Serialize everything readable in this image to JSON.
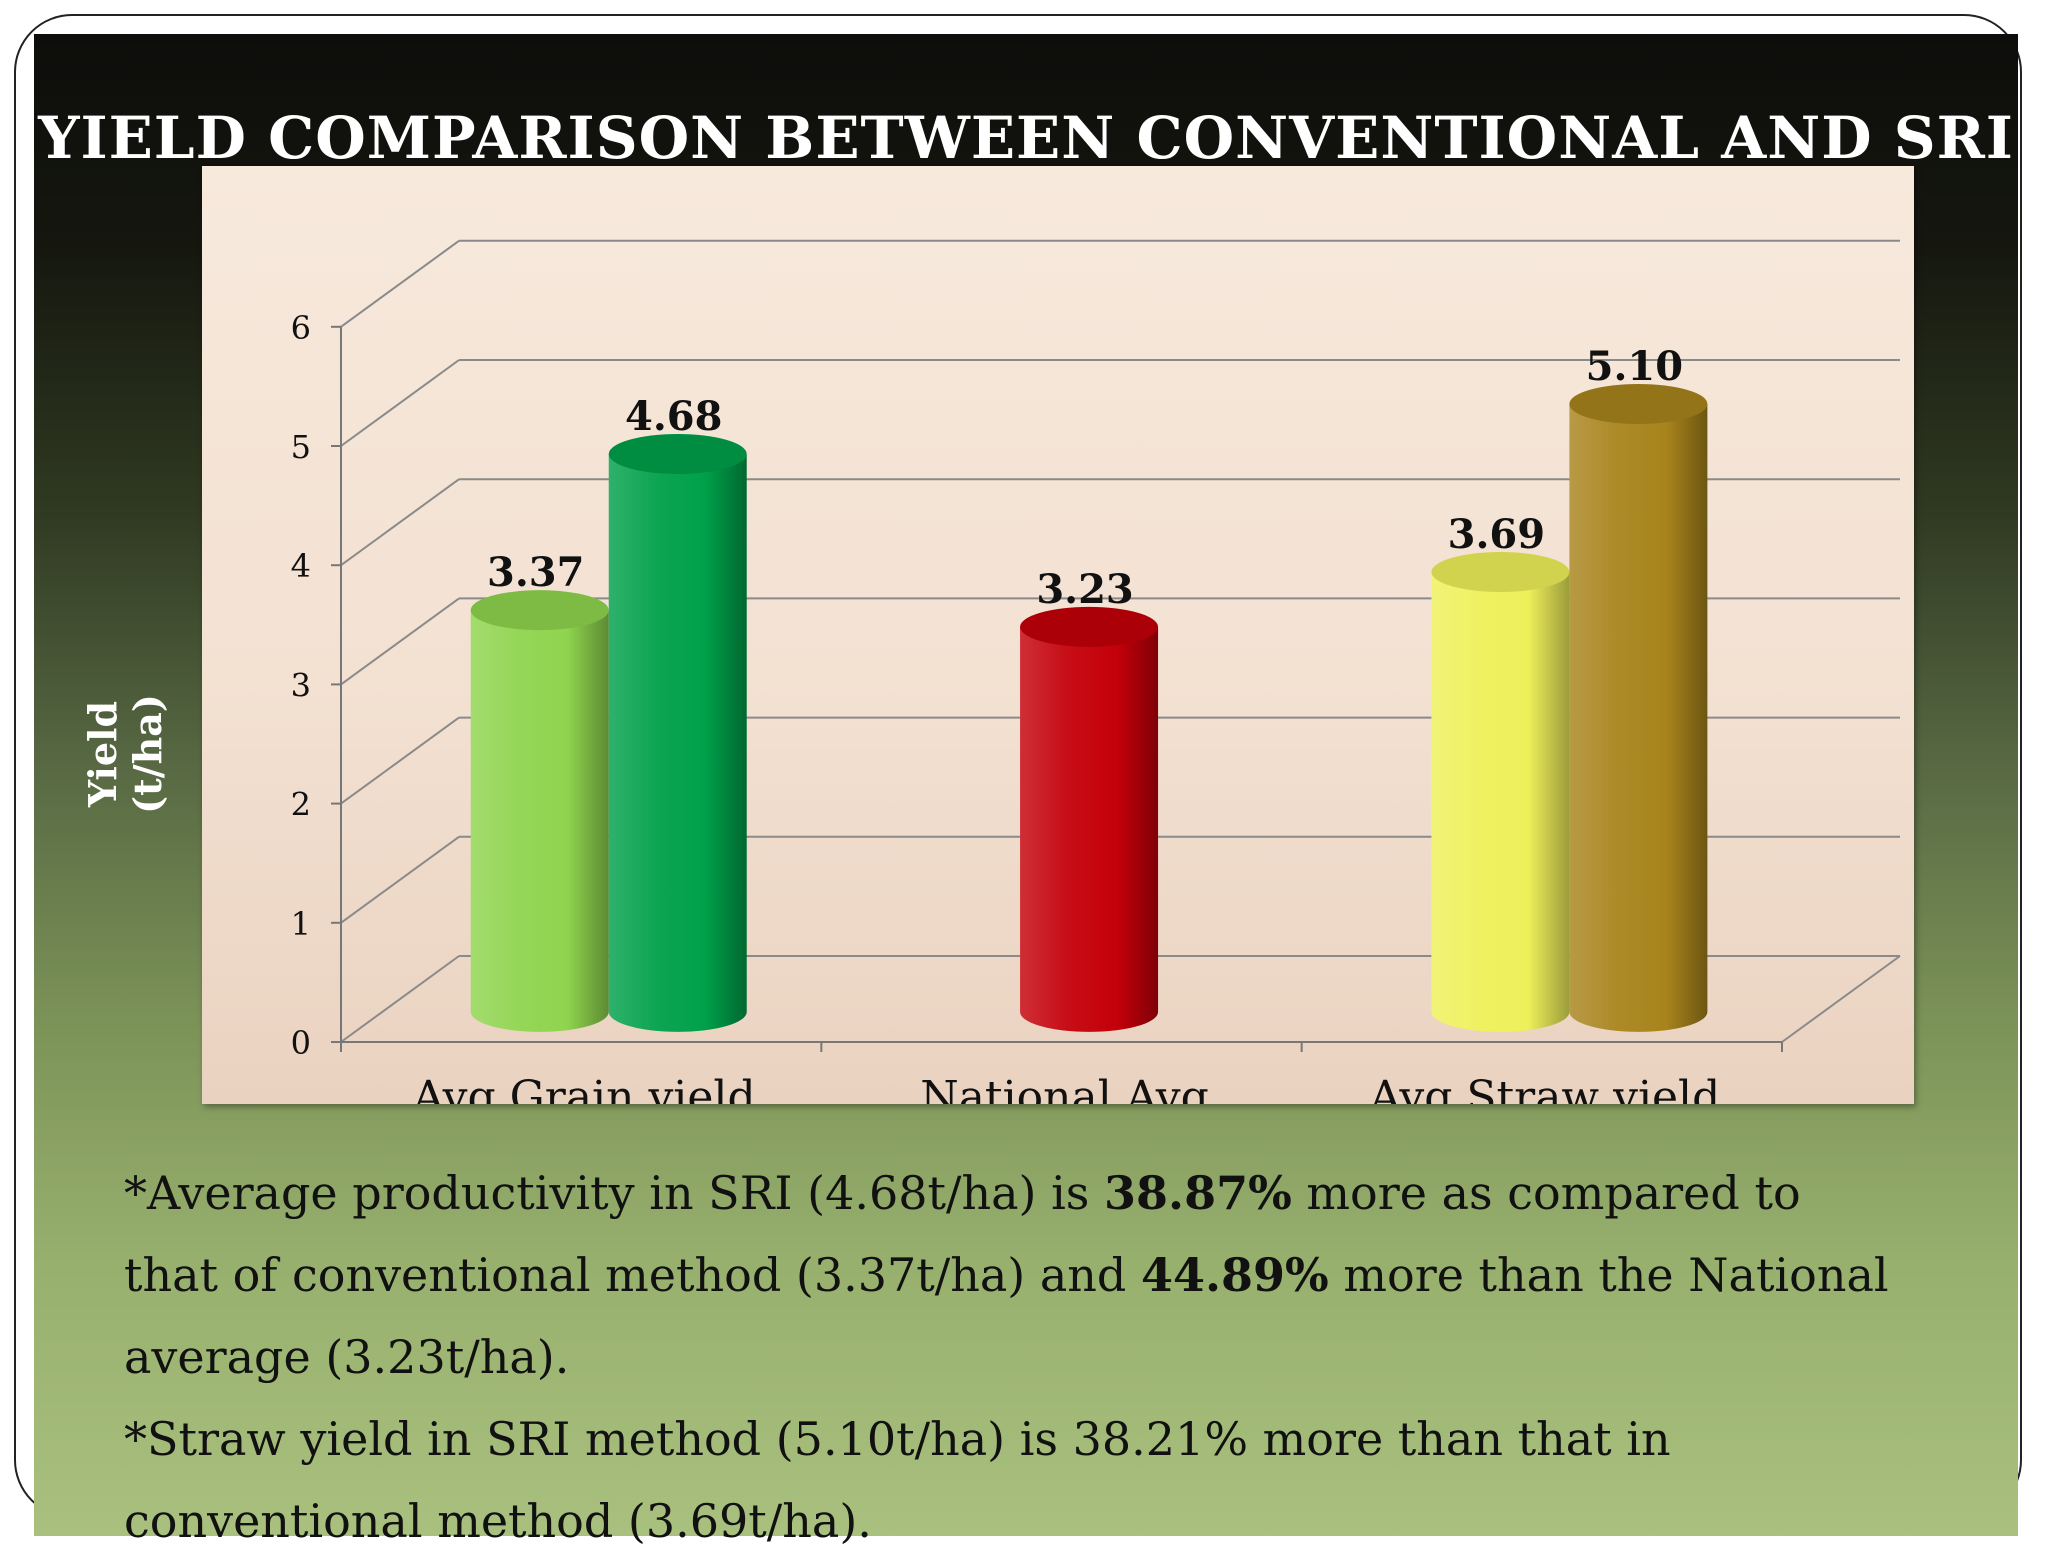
{
  "slide": {
    "title": "YIELD COMPARISON BETWEEN CONVENTIONAL  AND SRI",
    "notes": [
      [
        {
          "text": "*Average productivity in SRI (4.68t/ha) is ",
          "bold": false
        },
        {
          "text": "38.87%",
          "bold": true
        },
        {
          "text": " more as compared to",
          "bold": false
        },
        {
          "text": "that of conventional method (3.37t/ha) and ",
          "bold": false,
          "break_before": true
        },
        {
          "text": "44.89%",
          "bold": true
        },
        {
          "text": " more than the National",
          "bold": false
        },
        {
          "text": "average (3.23t/ha).",
          "bold": false,
          "break_before": true
        }
      ],
      [
        {
          "text": "*Straw yield in SRI method (5.10t/ha) is 38.21% more than that in",
          "bold": false
        },
        {
          "text": "conventional method (3.69t/ha).",
          "bold": false,
          "break_before": true
        }
      ]
    ]
  },
  "chart_data": {
    "type": "bar",
    "style": "3d-cylinder",
    "title": "YIELD COMPARISON BETWEEN CONVENTIONAL  AND SRI",
    "xlabel": "",
    "ylabel": "Yield (t/ha)",
    "ylim": [
      0,
      6
    ],
    "yticks": [
      0,
      1,
      2,
      3,
      4,
      5,
      6
    ],
    "grid": true,
    "categories": [
      "Avg.Grain yield",
      "National Avg",
      "Avg.Straw yield"
    ],
    "bars": [
      {
        "category": 0,
        "value": 3.37,
        "label": "3.37",
        "color": "#8fd44e"
      },
      {
        "category": 0,
        "value": 4.68,
        "label": "4.68",
        "color": "#00a04a"
      },
      {
        "category": 1,
        "value": 3.23,
        "label": "3.23",
        "color": "#c4000a"
      },
      {
        "category": 2,
        "value": 3.69,
        "label": "3.69",
        "color": "#eef05a"
      },
      {
        "category": 2,
        "value": 5.1,
        "label": "5.10",
        "color": "#a8841c"
      }
    ]
  }
}
